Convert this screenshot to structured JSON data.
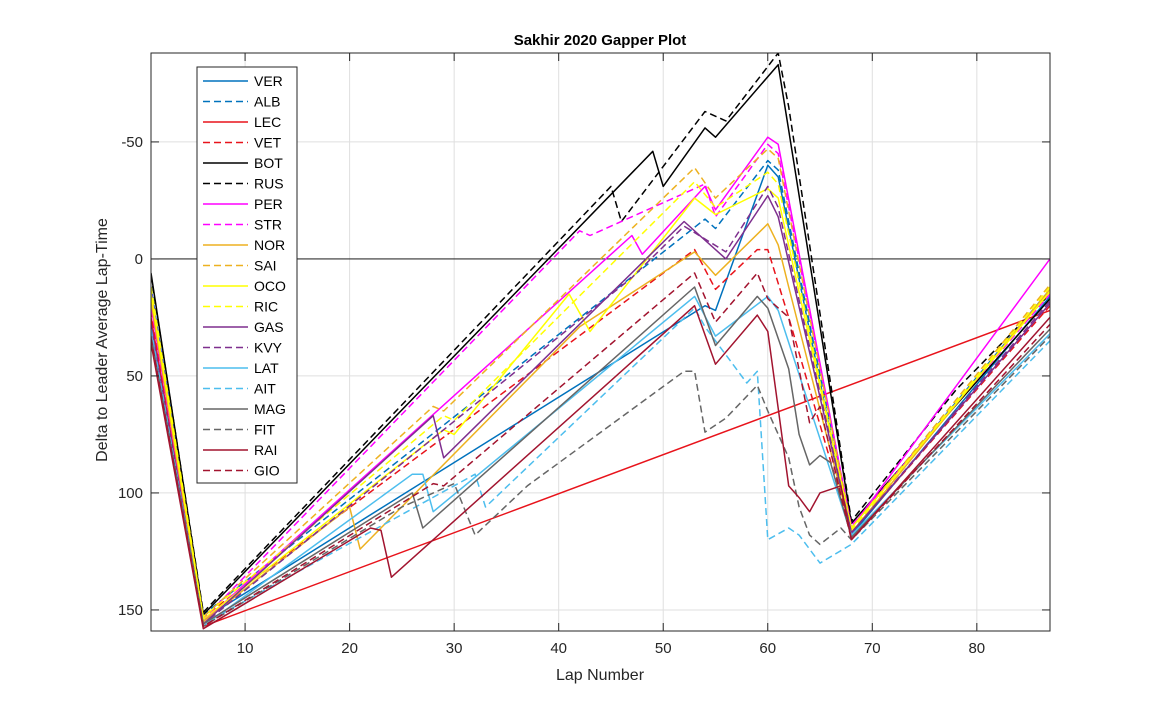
{
  "chart_data": {
    "type": "line",
    "title": "Sakhir 2020 Gapper Plot",
    "xlabel": "Lap Number",
    "ylabel": "Delta to Leader Average Lap-Time",
    "xlim": [
      1,
      87
    ],
    "ylim": [
      -88,
      159
    ],
    "y_reversed": true,
    "grid": true,
    "zero_line": true,
    "x_ticks": [
      10,
      20,
      30,
      40,
      50,
      60,
      70,
      80
    ],
    "y_ticks": [
      -50,
      0,
      50,
      100,
      150
    ],
    "legend_position": "top-left",
    "series": [
      {
        "name": "VER",
        "color": "#0072BD",
        "dash": false,
        "points": [
          [
            1,
            12
          ],
          [
            6,
            154
          ],
          [
            54,
            20
          ],
          [
            55,
            22
          ],
          [
            60,
            -40
          ],
          [
            61,
            -35
          ],
          [
            68,
            118
          ],
          [
            87,
            16
          ]
        ]
      },
      {
        "name": "ALB",
        "color": "#0072BD",
        "dash": true,
        "points": [
          [
            1,
            17
          ],
          [
            6,
            152
          ],
          [
            54,
            -17
          ],
          [
            55,
            -13
          ],
          [
            60,
            -42
          ],
          [
            61,
            -38
          ],
          [
            68,
            115
          ],
          [
            87,
            13
          ]
        ]
      },
      {
        "name": "LEC",
        "color": "#E8131B",
        "dash": false,
        "points": [
          [
            1,
            25
          ],
          [
            6,
            157
          ],
          [
            87,
            22
          ]
        ]
      },
      {
        "name": "VET",
        "color": "#E8131B",
        "dash": true,
        "points": [
          [
            1,
            22
          ],
          [
            6,
            153
          ],
          [
            53,
            -4
          ],
          [
            55,
            13
          ],
          [
            59,
            -4
          ],
          [
            60,
            -4
          ],
          [
            62,
            25
          ],
          [
            68,
            117
          ],
          [
            87,
            20
          ]
        ]
      },
      {
        "name": "BOT",
        "color": "#000000",
        "dash": false,
        "points": [
          [
            1,
            6
          ],
          [
            6,
            152
          ],
          [
            49,
            -46
          ],
          [
            50,
            -31
          ],
          [
            54,
            -56
          ],
          [
            55,
            -52
          ],
          [
            61,
            -83
          ],
          [
            62,
            -55
          ],
          [
            68,
            113
          ],
          [
            87,
            17
          ]
        ]
      },
      {
        "name": "RUS",
        "color": "#000000",
        "dash": true,
        "points": [
          [
            1,
            7
          ],
          [
            6,
            151
          ],
          [
            45,
            -31
          ],
          [
            46,
            -16
          ],
          [
            54,
            -63
          ],
          [
            56,
            -59
          ],
          [
            61,
            -88
          ],
          [
            62,
            -65
          ],
          [
            68,
            112
          ],
          [
            78,
            56
          ],
          [
            87,
            15
          ]
        ]
      },
      {
        "name": "PER",
        "color": "#FF00FF",
        "dash": false,
        "points": [
          [
            1,
            20
          ],
          [
            6,
            155
          ],
          [
            47,
            -10
          ],
          [
            48,
            -2
          ],
          [
            54,
            -31
          ],
          [
            55,
            -21
          ],
          [
            60,
            -52
          ],
          [
            61,
            -49
          ],
          [
            68,
            115
          ],
          [
            87,
            0
          ]
        ]
      },
      {
        "name": "STR",
        "color": "#FF00FF",
        "dash": true,
        "points": [
          [
            1,
            14
          ],
          [
            6,
            154
          ],
          [
            42,
            -12
          ],
          [
            43,
            -10
          ],
          [
            54,
            -32
          ],
          [
            55,
            -18
          ],
          [
            60,
            -49
          ],
          [
            61,
            -45
          ],
          [
            68,
            114
          ],
          [
            87,
            15
          ]
        ]
      },
      {
        "name": "NOR",
        "color": "#EDB120",
        "dash": false,
        "points": [
          [
            1,
            18
          ],
          [
            6,
            155
          ],
          [
            20,
            106
          ],
          [
            21,
            124
          ],
          [
            42,
            29
          ],
          [
            53,
            -3
          ],
          [
            55,
            7
          ],
          [
            60,
            -15
          ],
          [
            61,
            -6
          ],
          [
            62,
            12
          ],
          [
            68,
            117
          ],
          [
            87,
            13
          ]
        ]
      },
      {
        "name": "SAI",
        "color": "#EDB120",
        "dash": true,
        "points": [
          [
            1,
            15
          ],
          [
            6,
            153
          ],
          [
            28,
            63
          ],
          [
            29,
            65
          ],
          [
            53,
            -39
          ],
          [
            55,
            -26
          ],
          [
            60,
            -47
          ],
          [
            61,
            -43
          ],
          [
            68,
            115
          ],
          [
            87,
            11
          ]
        ]
      },
      {
        "name": "OCO",
        "color": "#FFFF00",
        "dash": false,
        "points": [
          [
            1,
            15
          ],
          [
            6,
            154
          ],
          [
            29,
            73
          ],
          [
            30,
            75
          ],
          [
            41,
            15
          ],
          [
            43,
            31
          ],
          [
            53,
            -26
          ],
          [
            55,
            -19
          ],
          [
            60,
            -30
          ],
          [
            61,
            -26
          ],
          [
            68,
            115
          ],
          [
            87,
            14
          ]
        ]
      },
      {
        "name": "RIC",
        "color": "#FFFF00",
        "dash": true,
        "points": [
          [
            1,
            12
          ],
          [
            6,
            153
          ],
          [
            29,
            67
          ],
          [
            30,
            69
          ],
          [
            53,
            -33
          ],
          [
            55,
            -22
          ],
          [
            60,
            -37
          ],
          [
            61,
            -32
          ],
          [
            68,
            116
          ],
          [
            87,
            12
          ]
        ]
      },
      {
        "name": "GAS",
        "color": "#7E2F8E",
        "dash": false,
        "points": [
          [
            1,
            28
          ],
          [
            6,
            156
          ],
          [
            28,
            67
          ],
          [
            29,
            85
          ],
          [
            52,
            -16
          ],
          [
            56,
            0
          ],
          [
            60,
            -27
          ],
          [
            61,
            -18
          ],
          [
            68,
            117
          ],
          [
            87,
            19
          ]
        ]
      },
      {
        "name": "KVY",
        "color": "#7E2F8E",
        "dash": true,
        "points": [
          [
            1,
            30
          ],
          [
            6,
            156
          ],
          [
            47,
            8
          ],
          [
            52,
            -14
          ],
          [
            56,
            -3
          ],
          [
            60,
            -31
          ],
          [
            61,
            -22
          ],
          [
            68,
            117
          ],
          [
            87,
            18
          ]
        ]
      },
      {
        "name": "LAT",
        "color": "#4DBEEE",
        "dash": false,
        "points": [
          [
            1,
            32
          ],
          [
            6,
            157
          ],
          [
            26,
            92
          ],
          [
            27,
            92
          ],
          [
            28,
            108
          ],
          [
            53,
            16
          ],
          [
            55,
            33
          ],
          [
            60,
            16
          ],
          [
            61,
            22
          ],
          [
            68,
            118
          ],
          [
            87,
            32
          ]
        ]
      },
      {
        "name": "AIT",
        "color": "#4DBEEE",
        "dash": true,
        "points": [
          [
            1,
            30
          ],
          [
            6,
            156
          ],
          [
            32,
            92
          ],
          [
            33,
            106
          ],
          [
            53,
            21
          ],
          [
            54,
            29
          ],
          [
            58,
            53
          ],
          [
            59,
            48
          ],
          [
            60,
            120
          ],
          [
            62,
            115
          ],
          [
            63,
            118
          ],
          [
            65,
            130
          ],
          [
            68,
            122
          ],
          [
            87,
            35
          ]
        ]
      },
      {
        "name": "MAG",
        "color": "#666666",
        "dash": false,
        "points": [
          [
            1,
            33
          ],
          [
            6,
            156
          ],
          [
            26,
            100
          ],
          [
            27,
            115
          ],
          [
            53,
            12
          ],
          [
            55,
            37
          ],
          [
            59,
            16
          ],
          [
            60,
            21
          ],
          [
            62,
            47
          ],
          [
            63,
            75
          ],
          [
            64,
            88
          ],
          [
            65,
            84
          ],
          [
            66,
            87
          ],
          [
            68,
            119
          ],
          [
            87,
            30
          ]
        ]
      },
      {
        "name": "FIT",
        "color": "#666666",
        "dash": true,
        "points": [
          [
            1,
            35
          ],
          [
            6,
            157
          ],
          [
            25,
            106
          ],
          [
            30,
            96
          ],
          [
            32,
            118
          ],
          [
            37,
            97
          ],
          [
            52,
            48
          ],
          [
            53,
            48
          ],
          [
            54,
            74
          ],
          [
            56,
            68
          ],
          [
            59,
            54
          ],
          [
            60,
            65
          ],
          [
            62,
            85
          ],
          [
            63,
            106
          ],
          [
            64,
            118
          ],
          [
            65,
            122
          ],
          [
            67,
            115
          ],
          [
            68,
            120
          ],
          [
            87,
            33
          ]
        ]
      },
      {
        "name": "RAI",
        "color": "#A2142F",
        "dash": false,
        "points": [
          [
            1,
            36
          ],
          [
            6,
            158
          ],
          [
            22,
            115
          ],
          [
            23,
            116
          ],
          [
            24,
            136
          ],
          [
            53,
            20
          ],
          [
            55,
            45
          ],
          [
            59,
            24
          ],
          [
            60,
            31
          ],
          [
            62,
            97
          ],
          [
            63,
            102
          ],
          [
            64,
            108
          ],
          [
            65,
            100
          ],
          [
            67,
            97
          ],
          [
            68,
            120
          ],
          [
            87,
            25
          ]
        ]
      },
      {
        "name": "GIO",
        "color": "#A2142F",
        "dash": true,
        "points": [
          [
            1,
            34
          ],
          [
            6,
            157
          ],
          [
            28,
            96
          ],
          [
            29,
            97
          ],
          [
            53,
            6
          ],
          [
            55,
            27
          ],
          [
            59,
            6
          ],
          [
            60,
            17
          ],
          [
            62,
            25
          ],
          [
            64,
            70
          ],
          [
            65,
            63
          ],
          [
            68,
            120
          ],
          [
            87,
            28
          ]
        ]
      }
    ]
  }
}
